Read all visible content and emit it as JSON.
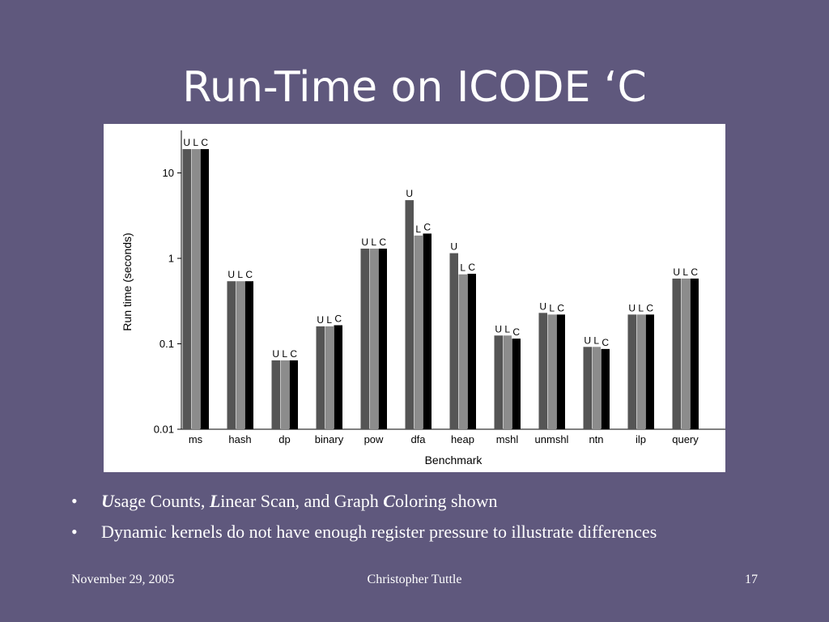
{
  "slide": {
    "title": "Run-Time on ICODE ‘C",
    "bullets": [
      {
        "parts": [
          {
            "text": "U",
            "emph": true
          },
          {
            "text": "sage Counts, "
          },
          {
            "text": "L",
            "emph": true
          },
          {
            "text": "inear Scan, and Graph "
          },
          {
            "text": "C",
            "emph": true
          },
          {
            "text": "oloring shown"
          }
        ]
      },
      {
        "parts": [
          {
            "text": "Dynamic kernels do not have enough register pressure to illustrate differences"
          }
        ]
      }
    ],
    "footer": {
      "date": "November 29, 2005",
      "author": "Christopher Tuttle",
      "page": "17"
    }
  },
  "chart_data": {
    "type": "bar",
    "xlabel": "Benchmark",
    "ylabel": "Run time (seconds)",
    "yscale": "log",
    "ylim": [
      0.01,
      30
    ],
    "yticks": [
      {
        "value": 10,
        "label": "10"
      },
      {
        "value": 1,
        "label": "1"
      },
      {
        "value": 0.1,
        "label": "0.1"
      },
      {
        "value": 0.01,
        "label": "0.01"
      }
    ],
    "categories": [
      "ms",
      "hash",
      "dp",
      "binary",
      "pow",
      "dfa",
      "heap",
      "mshl",
      "unmshl",
      "ntn",
      "ilp",
      "query"
    ],
    "series": [
      {
        "label": "U",
        "color": "#555555",
        "values": [
          19,
          0.54,
          0.064,
          0.16,
          1.3,
          4.8,
          1.15,
          0.125,
          0.23,
          0.092,
          0.22,
          0.58
        ]
      },
      {
        "label": "L",
        "color": "#8c8c8c",
        "values": [
          19,
          0.54,
          0.064,
          0.16,
          1.3,
          1.85,
          0.65,
          0.125,
          0.22,
          0.092,
          0.22,
          0.58
        ]
      },
      {
        "label": "C",
        "color": "#000000",
        "values": [
          19,
          0.54,
          0.064,
          0.165,
          1.3,
          1.95,
          0.66,
          0.115,
          0.22,
          0.087,
          0.22,
          0.58
        ]
      }
    ],
    "grid": false,
    "legend": "none",
    "bar_labels": "per-bar series letter above each bar"
  }
}
